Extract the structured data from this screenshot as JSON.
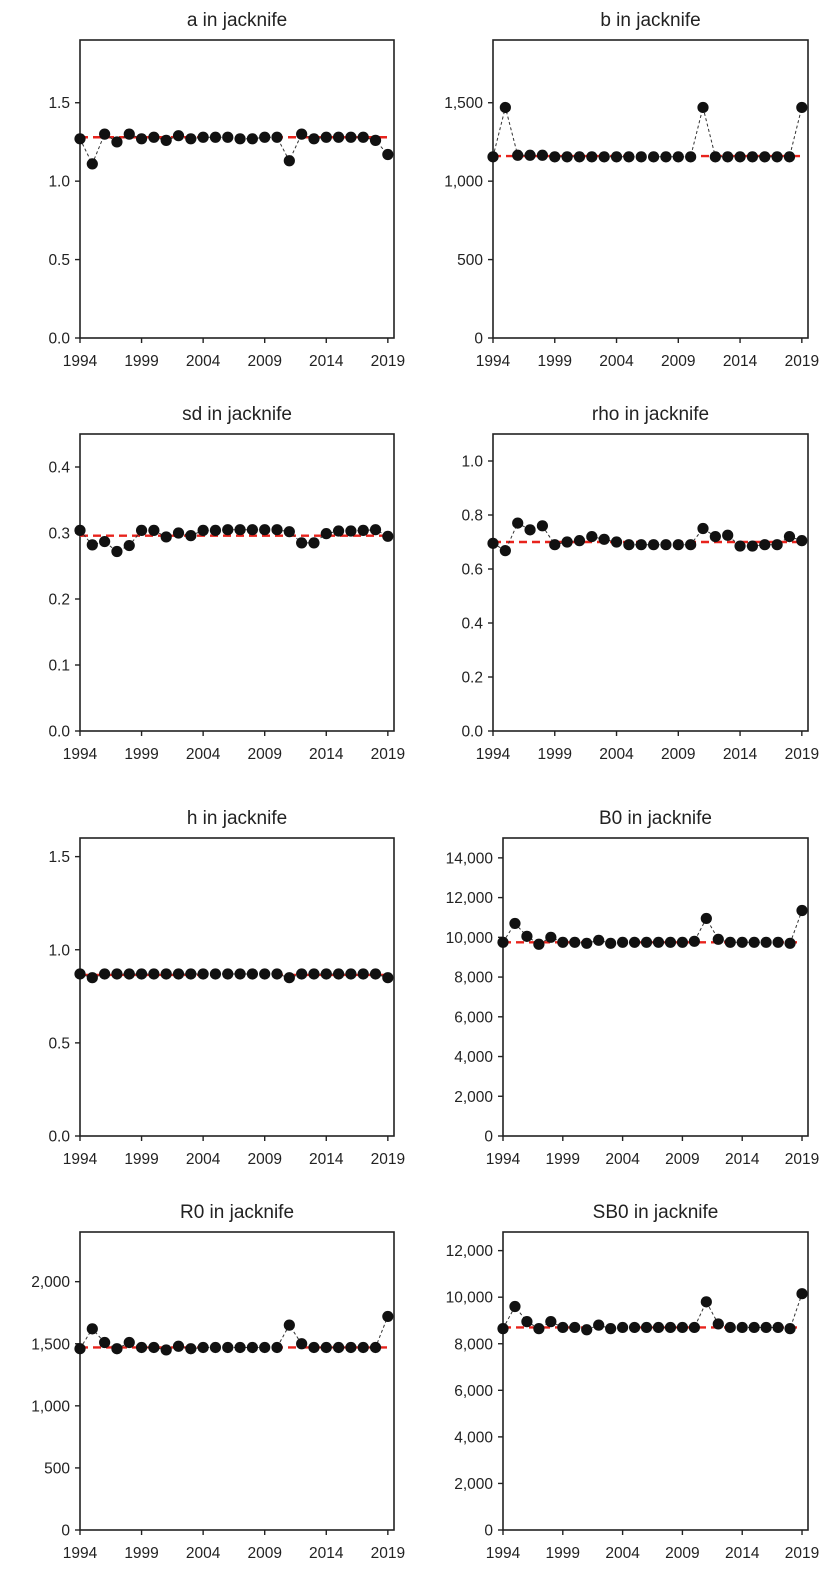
{
  "chart_data": [
    {
      "type": "scatter",
      "title": "a in jacknife",
      "xticks": [
        "1994",
        "1999",
        "2004",
        "2009",
        "2014",
        "2019"
      ],
      "yticks": [
        "0.0",
        "0.5",
        "1.0",
        "1.5"
      ],
      "xlim": [
        1994,
        2019.5
      ],
      "ylim": [
        0,
        1.9
      ],
      "x": [
        1994,
        1995,
        1996,
        1997,
        1998,
        1999,
        2000,
        2001,
        2002,
        2003,
        2004,
        2005,
        2006,
        2007,
        2008,
        2009,
        2010,
        2011,
        2012,
        2013,
        2014,
        2015,
        2016,
        2017,
        2018,
        2019
      ],
      "values": [
        1.27,
        1.11,
        1.3,
        1.25,
        1.3,
        1.27,
        1.28,
        1.26,
        1.29,
        1.27,
        1.28,
        1.28,
        1.28,
        1.27,
        1.27,
        1.28,
        1.28,
        1.13,
        1.3,
        1.27,
        1.28,
        1.28,
        1.28,
        1.28,
        1.26,
        1.17
      ],
      "reference": 1.28
    },
    {
      "type": "scatter",
      "title": "b in jacknife",
      "xticks": [
        "1994",
        "1999",
        "2004",
        "2009",
        "2014",
        "2019"
      ],
      "yticks": [
        "0",
        "500",
        "1,000",
        "1,500"
      ],
      "xlim": [
        1994,
        2019.5
      ],
      "ylim": [
        0,
        1900
      ],
      "x": [
        1994,
        1995,
        1996,
        1997,
        1998,
        1999,
        2000,
        2001,
        2002,
        2003,
        2004,
        2005,
        2006,
        2007,
        2008,
        2009,
        2010,
        2011,
        2012,
        2013,
        2014,
        2015,
        2016,
        2017,
        2018,
        2019
      ],
      "values": [
        1155,
        1470,
        1165,
        1165,
        1165,
        1155,
        1155,
        1155,
        1155,
        1155,
        1155,
        1155,
        1155,
        1155,
        1155,
        1155,
        1155,
        1470,
        1155,
        1155,
        1155,
        1155,
        1155,
        1155,
        1155,
        1470
      ],
      "reference": 1160
    },
    {
      "type": "scatter",
      "title": "sd in jacknife",
      "xticks": [
        "1994",
        "1999",
        "2004",
        "2009",
        "2014",
        "2019"
      ],
      "yticks": [
        "0.0",
        "0.1",
        "0.2",
        "0.3",
        "0.4"
      ],
      "xlim": [
        1994,
        2019.5
      ],
      "ylim": [
        0,
        0.45
      ],
      "x": [
        1994,
        1995,
        1996,
        1997,
        1998,
        1999,
        2000,
        2001,
        2002,
        2003,
        2004,
        2005,
        2006,
        2007,
        2008,
        2009,
        2010,
        2011,
        2012,
        2013,
        2014,
        2015,
        2016,
        2017,
        2018,
        2019
      ],
      "values": [
        0.304,
        0.282,
        0.287,
        0.272,
        0.281,
        0.304,
        0.304,
        0.294,
        0.3,
        0.296,
        0.304,
        0.304,
        0.305,
        0.305,
        0.305,
        0.305,
        0.305,
        0.302,
        0.285,
        0.285,
        0.299,
        0.303,
        0.303,
        0.304,
        0.305,
        0.295
      ],
      "reference": 0.296
    },
    {
      "type": "scatter",
      "title": "rho in jacknife",
      "xticks": [
        "1994",
        "1999",
        "2004",
        "2009",
        "2014",
        "2019"
      ],
      "yticks": [
        "0.0",
        "0.2",
        "0.4",
        "0.6",
        "0.8",
        "1.0"
      ],
      "xlim": [
        1994,
        2019.5
      ],
      "ylim": [
        0,
        1.1
      ],
      "x": [
        1994,
        1995,
        1996,
        1997,
        1998,
        1999,
        2000,
        2001,
        2002,
        2003,
        2004,
        2005,
        2006,
        2007,
        2008,
        2009,
        2010,
        2011,
        2012,
        2013,
        2014,
        2015,
        2016,
        2017,
        2018,
        2019
      ],
      "values": [
        0.695,
        0.668,
        0.77,
        0.745,
        0.76,
        0.69,
        0.7,
        0.705,
        0.72,
        0.71,
        0.7,
        0.69,
        0.69,
        0.69,
        0.69,
        0.69,
        0.69,
        0.75,
        0.72,
        0.725,
        0.685,
        0.685,
        0.69,
        0.69,
        0.72,
        0.705
      ],
      "reference": 0.7
    },
    {
      "type": "scatter",
      "title": "h in jacknife",
      "xticks": [
        "1994",
        "1999",
        "2004",
        "2009",
        "2014",
        "2019"
      ],
      "yticks": [
        "0.0",
        "0.5",
        "1.0",
        "1.5"
      ],
      "xlim": [
        1994,
        2019.5
      ],
      "ylim": [
        0,
        1.6
      ],
      "x": [
        1994,
        1995,
        1996,
        1997,
        1998,
        1999,
        2000,
        2001,
        2002,
        2003,
        2004,
        2005,
        2006,
        2007,
        2008,
        2009,
        2010,
        2011,
        2012,
        2013,
        2014,
        2015,
        2016,
        2017,
        2018,
        2019
      ],
      "values": [
        0.87,
        0.85,
        0.87,
        0.87,
        0.87,
        0.87,
        0.87,
        0.87,
        0.87,
        0.87,
        0.87,
        0.87,
        0.87,
        0.87,
        0.87,
        0.87,
        0.87,
        0.85,
        0.87,
        0.87,
        0.87,
        0.87,
        0.87,
        0.87,
        0.87,
        0.85
      ],
      "reference": 0.865
    },
    {
      "type": "scatter",
      "title": "B0 in jacknife",
      "xticks": [
        "1994",
        "1999",
        "2004",
        "2009",
        "2014",
        "2019"
      ],
      "yticks": [
        "0",
        "2,000",
        "4,000",
        "6,000",
        "8,000",
        "10,000",
        "12,000",
        "14,000"
      ],
      "xlim": [
        1994,
        2019.5
      ],
      "ylim": [
        0,
        15000
      ],
      "x": [
        1994,
        1995,
        1996,
        1997,
        1998,
        1999,
        2000,
        2001,
        2002,
        2003,
        2004,
        2005,
        2006,
        2007,
        2008,
        2009,
        2010,
        2011,
        2012,
        2013,
        2014,
        2015,
        2016,
        2017,
        2018,
        2019
      ],
      "values": [
        9750,
        10700,
        10050,
        9650,
        10000,
        9750,
        9750,
        9700,
        9850,
        9700,
        9750,
        9750,
        9750,
        9750,
        9750,
        9750,
        9800,
        10950,
        9900,
        9750,
        9750,
        9750,
        9750,
        9750,
        9700,
        11350
      ],
      "reference": 9750
    },
    {
      "type": "scatter",
      "title": "R0 in jacknife",
      "xticks": [
        "1994",
        "1999",
        "2004",
        "2009",
        "2014",
        "2019"
      ],
      "yticks": [
        "0",
        "500",
        "1,000",
        "1,500",
        "2,000"
      ],
      "xlim": [
        1994,
        2019.5
      ],
      "ylim": [
        0,
        2400
      ],
      "x": [
        1994,
        1995,
        1996,
        1997,
        1998,
        1999,
        2000,
        2001,
        2002,
        2003,
        2004,
        2005,
        2006,
        2007,
        2008,
        2009,
        2010,
        2011,
        2012,
        2013,
        2014,
        2015,
        2016,
        2017,
        2018,
        2019
      ],
      "values": [
        1460,
        1620,
        1510,
        1460,
        1510,
        1470,
        1470,
        1450,
        1480,
        1460,
        1470,
        1470,
        1470,
        1470,
        1470,
        1470,
        1470,
        1650,
        1500,
        1470,
        1470,
        1470,
        1470,
        1470,
        1470,
        1720
      ],
      "reference": 1470
    },
    {
      "type": "scatter",
      "title": "SB0 in jacknife",
      "xticks": [
        "1994",
        "1999",
        "2004",
        "2009",
        "2014",
        "2019"
      ],
      "yticks": [
        "0",
        "2,000",
        "4,000",
        "6,000",
        "8,000",
        "10,000",
        "12,000"
      ],
      "xlim": [
        1994,
        2019.5
      ],
      "ylim": [
        0,
        12800
      ],
      "x": [
        1994,
        1995,
        1996,
        1997,
        1998,
        1999,
        2000,
        2001,
        2002,
        2003,
        2004,
        2005,
        2006,
        2007,
        2008,
        2009,
        2010,
        2011,
        2012,
        2013,
        2014,
        2015,
        2016,
        2017,
        2018,
        2019
      ],
      "values": [
        8650,
        9600,
        8950,
        8650,
        8950,
        8700,
        8700,
        8600,
        8800,
        8650,
        8700,
        8700,
        8700,
        8700,
        8700,
        8700,
        8700,
        9800,
        8850,
        8700,
        8700,
        8700,
        8700,
        8700,
        8650,
        10150
      ],
      "reference": 8700
    }
  ],
  "colors": {
    "marker": "#111111",
    "connector": "#333333",
    "reference": "#e8231c",
    "axis": "#222222"
  }
}
